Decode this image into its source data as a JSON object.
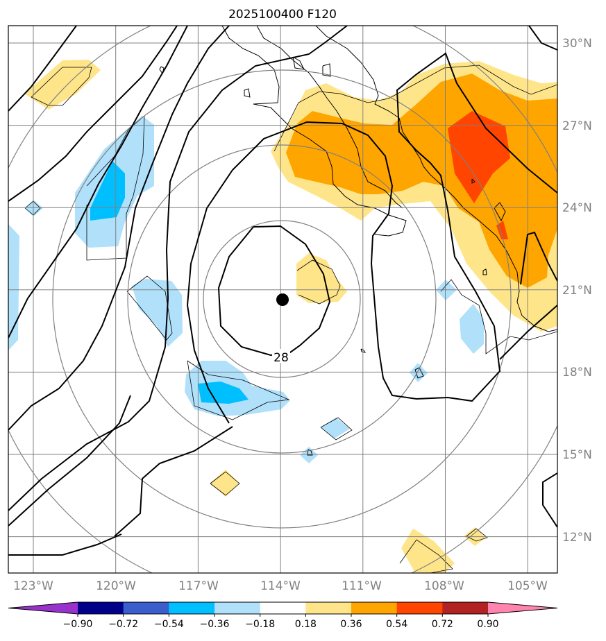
{
  "chart_data": {
    "type": "contour-map",
    "title": "2025100400 F120",
    "projection": "polar-stereographic-ish regional map",
    "lon_range": [
      -124.2,
      -103.7
    ],
    "lat_range": [
      10.7,
      30.7
    ],
    "lon_ticks": [
      "123°W",
      "120°W",
      "117°W",
      "114°W",
      "111°W",
      "108°W",
      "105°W"
    ],
    "lon_tick_values": [
      -123,
      -120,
      -117,
      -114,
      -111,
      -108,
      -105
    ],
    "lat_ticks": [
      "30°N",
      "27°N",
      "24°N",
      "21°N",
      "18°N",
      "15°N",
      "12°N"
    ],
    "lat_tick_values": [
      30,
      27,
      24,
      21,
      18,
      15,
      12
    ],
    "storm_center": {
      "lon": -114.0,
      "lat": 20.6
    },
    "contour_labels": [
      {
        "text": "28",
        "lon": -114.0,
        "lat": 18.5
      }
    ],
    "colorbar": {
      "levels": [
        -0.9,
        -0.72,
        -0.54,
        -0.36,
        -0.18,
        0.18,
        0.36,
        0.54,
        0.72,
        0.9
      ],
      "tick_labels": [
        "−0.90",
        "−0.72",
        "−0.54",
        "−0.36",
        "−0.18",
        "0.18",
        "0.36",
        "0.54",
        "0.72",
        "0.90"
      ],
      "colors": [
        "#9932cc",
        "#00008b",
        "#3a5fcd",
        "#00bfff",
        "#b0e0fa",
        "#ffffff",
        "#ffe58a",
        "#ffa500",
        "#ff4500",
        "#b22222",
        "#ff85b0"
      ],
      "extend": "both"
    },
    "colors": {
      "light_blue": "#b0e0fa",
      "blue": "#00bfff",
      "light_yellow": "#ffe58a",
      "orange": "#ffa500",
      "red_orange": "#ff4500",
      "grid": "#808080",
      "contour": "#000000"
    }
  }
}
